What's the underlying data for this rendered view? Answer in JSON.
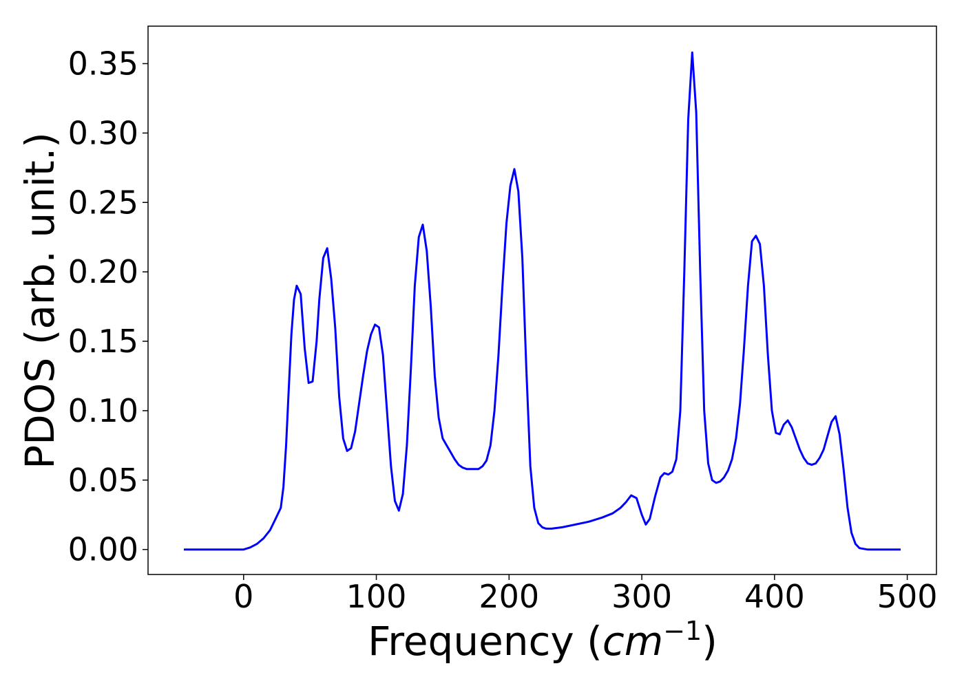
{
  "chart_data": {
    "type": "line",
    "title": "",
    "xlabel_main": "Frequency (",
    "xlabel_unit": "cm",
    "xlabel_exp": "−1",
    "xlabel_close": ")",
    "ylabel": "PDOS (arb. unit.)",
    "xlim": [
      -72,
      522
    ],
    "ylim": [
      -0.018,
      0.377
    ],
    "x_ticks": [
      0,
      100,
      200,
      300,
      400,
      500
    ],
    "x_tick_labels": [
      "0",
      "100",
      "200",
      "300",
      "400",
      "500"
    ],
    "y_ticks": [
      0.0,
      0.05,
      0.1,
      0.15,
      0.2,
      0.25,
      0.3,
      0.35
    ],
    "y_tick_labels": [
      "0.00",
      "0.05",
      "0.10",
      "0.15",
      "0.20",
      "0.25",
      "0.30",
      "0.35"
    ],
    "grid": false,
    "series": [
      {
        "color": "#0000ff",
        "x": [
          -45,
          -20,
          0,
          5,
          10,
          15,
          20,
          24,
          28,
          30,
          32,
          34,
          36,
          38,
          40,
          43,
          46,
          49,
          52,
          55,
          57,
          60,
          63,
          66,
          69,
          72,
          75,
          78,
          81,
          84,
          87,
          90,
          93,
          96,
          99,
          102,
          105,
          108,
          111,
          114,
          117,
          120,
          123,
          126,
          129,
          132,
          135,
          138,
          141,
          144,
          147,
          150,
          153,
          156,
          159,
          162,
          165,
          168,
          171,
          174,
          177,
          180,
          183,
          186,
          189,
          192,
          195,
          198,
          201,
          204,
          207,
          210,
          213,
          216,
          219,
          222,
          225,
          228,
          232,
          240,
          250,
          260,
          270,
          278,
          284,
          288,
          292,
          296,
          300,
          303,
          306,
          310,
          314,
          317,
          320,
          323,
          326,
          329,
          332,
          335,
          338,
          341,
          344,
          347,
          350,
          353,
          356,
          359,
          362,
          365,
          368,
          371,
          374,
          377,
          380,
          383,
          386,
          389,
          392,
          395,
          398,
          401,
          404,
          407,
          410,
          413,
          416,
          419,
          422,
          425,
          428,
          431,
          434,
          437,
          440,
          443,
          446,
          449,
          452,
          455,
          458,
          461,
          464,
          470,
          480,
          495
        ],
        "y": [
          0.0,
          0.0,
          0.0,
          0.0015,
          0.004,
          0.008,
          0.014,
          0.022,
          0.03,
          0.045,
          0.075,
          0.115,
          0.155,
          0.18,
          0.19,
          0.184,
          0.145,
          0.12,
          0.121,
          0.15,
          0.18,
          0.21,
          0.217,
          0.195,
          0.16,
          0.11,
          0.08,
          0.071,
          0.073,
          0.085,
          0.105,
          0.125,
          0.143,
          0.155,
          0.162,
          0.16,
          0.14,
          0.1,
          0.06,
          0.035,
          0.028,
          0.04,
          0.075,
          0.13,
          0.19,
          0.225,
          0.234,
          0.215,
          0.175,
          0.125,
          0.095,
          0.08,
          0.075,
          0.07,
          0.065,
          0.061,
          0.059,
          0.058,
          0.058,
          0.058,
          0.058,
          0.06,
          0.064,
          0.075,
          0.1,
          0.14,
          0.19,
          0.235,
          0.262,
          0.274,
          0.258,
          0.21,
          0.13,
          0.06,
          0.03,
          0.019,
          0.016,
          0.015,
          0.015,
          0.016,
          0.018,
          0.02,
          0.023,
          0.026,
          0.03,
          0.034,
          0.039,
          0.037,
          0.025,
          0.018,
          0.022,
          0.038,
          0.052,
          0.055,
          0.054,
          0.056,
          0.065,
          0.1,
          0.2,
          0.31,
          0.358,
          0.315,
          0.2,
          0.1,
          0.062,
          0.05,
          0.048,
          0.049,
          0.052,
          0.057,
          0.065,
          0.08,
          0.105,
          0.145,
          0.19,
          0.222,
          0.226,
          0.22,
          0.19,
          0.14,
          0.1,
          0.084,
          0.083,
          0.09,
          0.093,
          0.088,
          0.08,
          0.072,
          0.066,
          0.062,
          0.061,
          0.062,
          0.066,
          0.072,
          0.082,
          0.092,
          0.096,
          0.083,
          0.058,
          0.03,
          0.012,
          0.004,
          0.001,
          0.0,
          0.0,
          0.0
        ]
      }
    ]
  }
}
